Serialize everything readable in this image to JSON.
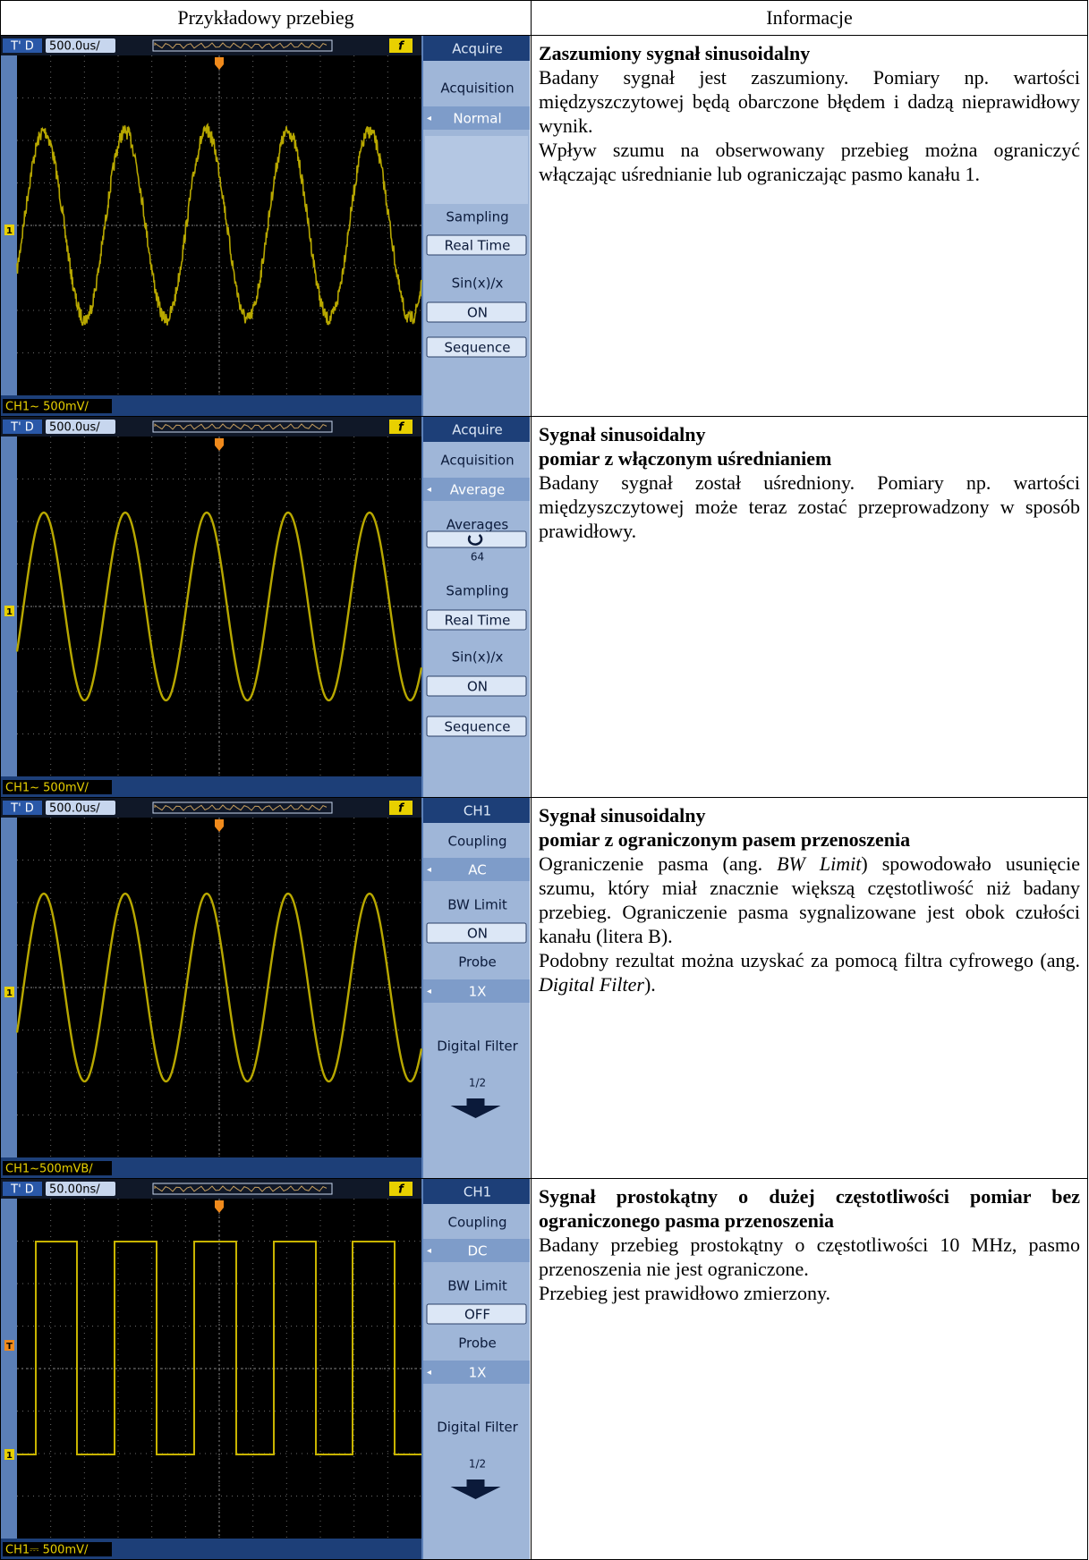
{
  "table": {
    "headers": [
      "Przykładowy przebieg",
      "Informacje"
    ],
    "rows": [
      {
        "scope": {
          "trigger_mode": "T' D",
          "timebase": "500.0us/",
          "trigger_icon": "f",
          "channel": "CH1~ 500mV/",
          "markers": [
            "1"
          ],
          "menu": [
            "Acquire",
            "Acquisition",
            "Normal",
            "Sampling",
            "Real Time",
            "Sin(x)/x",
            "ON",
            "Sequence"
          ]
        },
        "info": {
          "title": [
            "Zaszumiony sygnał sinusoidalny"
          ],
          "paragraphs": [
            [
              "Badany sygnał jest zaszumiony. Pomiary np. wartości międzyszczytowej będą obarczone błędem i dadzą nieprawidłowy wynik."
            ],
            [
              "Wpływ szumu na obserwowany przebieg można ograniczyć włączając uśrednianie lub ograniczając pasmo kanału 1."
            ]
          ]
        }
      },
      {
        "scope": {
          "trigger_mode": "T' D",
          "timebase": "500.0us/",
          "trigger_icon": "f",
          "channel": "CH1~ 500mV/",
          "markers": [
            "1"
          ],
          "menu": [
            "Acquire",
            "Acquisition",
            "Average",
            "Averages",
            "64",
            "Sampling",
            "Real Time",
            "Sin(x)/x",
            "ON",
            "Sequence"
          ]
        },
        "info": {
          "title": [
            "Sygnał sinusoidalny",
            "pomiar z włączonym uśrednianiem"
          ],
          "paragraphs": [
            [
              "Badany sygnał został uśredniony. Pomiary np. wartości międzyszczytowej może teraz zostać przeprowadzony w sposób prawidłowy."
            ]
          ]
        }
      },
      {
        "scope": {
          "trigger_mode": "T' D",
          "timebase": "500.0us/",
          "trigger_icon": "f",
          "channel": "CH1~500mVB/",
          "markers": [
            "1"
          ],
          "menu": [
            "CH1",
            "Coupling",
            "AC",
            "BW Limit",
            "ON",
            "Probe",
            "1X",
            "Digital Filter",
            "1/2"
          ]
        },
        "info": {
          "title": [
            "Sygnał sinusoidalny",
            "pomiar z ograniczonym pasem przenoszenia"
          ],
          "paragraphs": [
            [
              "Ograniczenie pasma (ang. ",
              "BW Limit",
              ") spowodowało usunięcie szumu, który miał znacznie większą częstotliwość niż badany przebieg. Ograniczenie pasma sygnalizowane jest obok czułości kanału (litera B)."
            ],
            [
              "Podobny rezultat można uzyskać za pomocą filtra cyfrowego (ang. ",
              "Digital Filter",
              ")."
            ]
          ]
        }
      },
      {
        "scope": {
          "trigger_mode": "T' D",
          "timebase": "50.00ns/",
          "trigger_icon": "f",
          "channel": "CH1⎓ 500mV/",
          "markers": [
            "T",
            "1"
          ],
          "menu": [
            "CH1",
            "Coupling",
            "DC",
            "BW Limit",
            "OFF",
            "Probe",
            "1X",
            "Digital Filter",
            "1/2"
          ]
        },
        "info": {
          "title": [
            "Sygnał prostokątny o dużej częstotliwości pomiar bez ograniczonego pasma przenoszenia"
          ],
          "paragraphs": [
            [
              "Badany przebieg prostokątny o częstotliwości 10 MHz, pasmo przenoszenia nie jest ograniczone."
            ],
            [
              "Przebieg jest prawidłowo zmierzony."
            ]
          ]
        }
      }
    ]
  }
}
